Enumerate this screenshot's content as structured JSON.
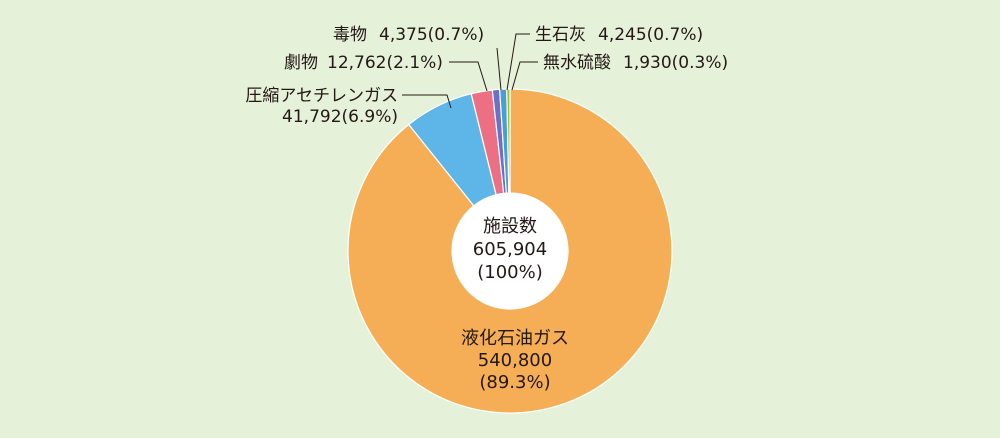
{
  "chart_data": {
    "type": "pie",
    "center_label": [
      "施設数",
      "605,904",
      "(100%)"
    ],
    "slices": [
      {
        "label": "液化石油ガス",
        "count": "540,800",
        "percent": "(89.3%)",
        "value": 540800,
        "color": "#f5ae56"
      },
      {
        "label": "圧縮アセチレンガス",
        "count": "41,792",
        "percent": "(6.9%)",
        "value": 41792,
        "color": "#5eb6e8"
      },
      {
        "label": "劇物",
        "count": "12,762",
        "percent": "(2.1%)",
        "value": 12762,
        "color": "#ec6f84"
      },
      {
        "label": "毒物",
        "count": "4,375",
        "percent": "(0.7%)",
        "value": 4375,
        "color": "#6f6fc4"
      },
      {
        "label": "生石灰",
        "count": "4,245",
        "percent": "(0.7%)",
        "value": 4245,
        "color": "#4a9ed6"
      },
      {
        "label": "無水硫酸",
        "count": "1,930",
        "percent": "(0.3%)",
        "value": 1930,
        "color": "#8cc63f"
      }
    ]
  }
}
